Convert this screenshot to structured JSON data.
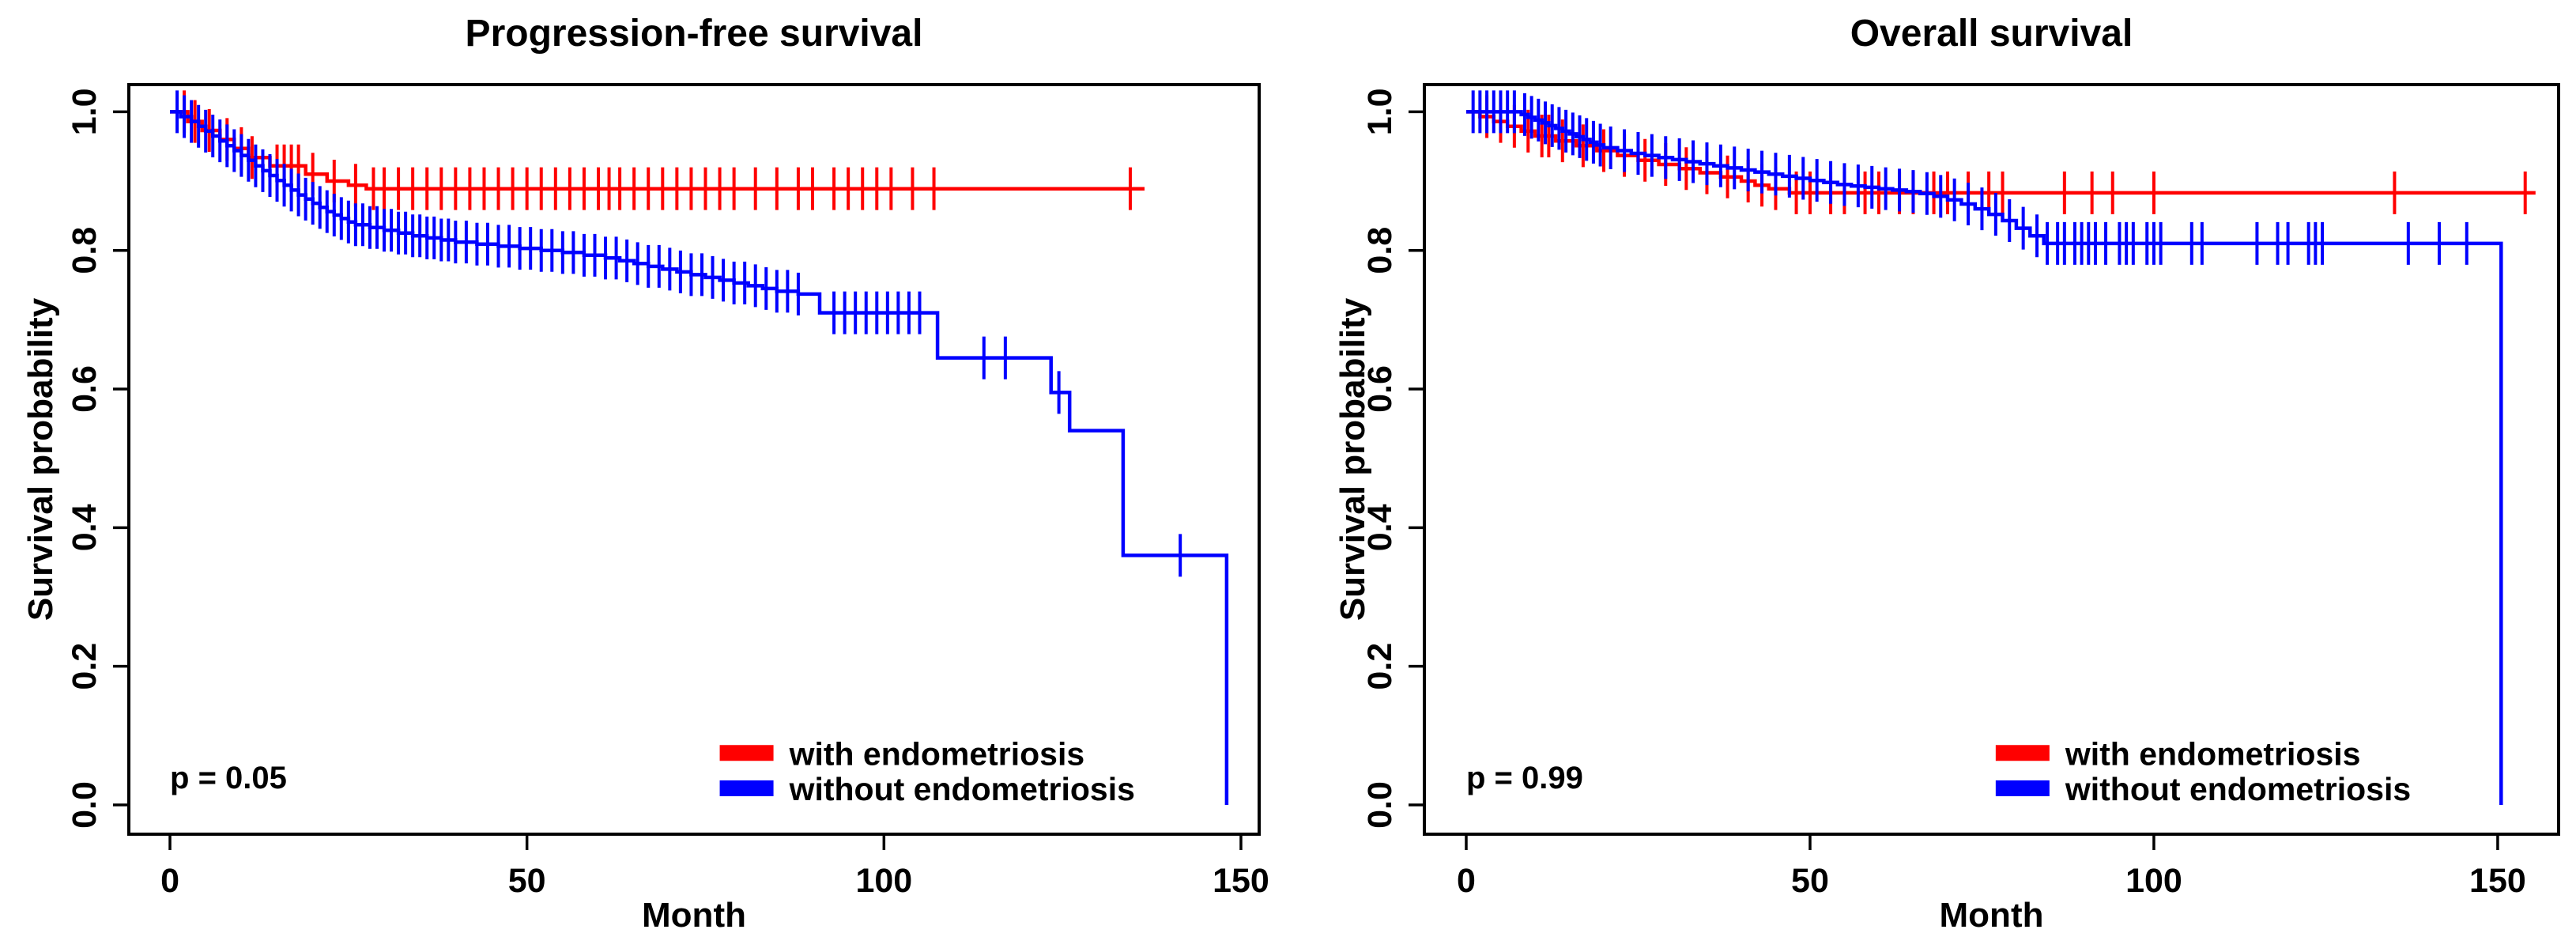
{
  "figure": {
    "background": "#ffffff",
    "curve_colors": {
      "with_endometriosis": "#FF0000",
      "without_endometriosis": "#0000FF"
    }
  },
  "chart_data": [
    {
      "type": "line",
      "subtype": "kaplan-meier-step",
      "title": "Progression-free survival",
      "xlabel": "Month",
      "ylabel": "Survival probability",
      "p_value_label": "p = 0.05",
      "x_ticks": [
        "0",
        "50",
        "100",
        "150"
      ],
      "x_tick_values": [
        0,
        50,
        100,
        150
      ],
      "y_ticks": [
        "1.0",
        "0.8",
        "0.6",
        "0.4",
        "0.2",
        "0.0"
      ],
      "y_tick_values": [
        1.0,
        0.8,
        0.6,
        0.4,
        0.2,
        0.0
      ],
      "xlim": [
        -5.76,
        152.55
      ],
      "ylim": [
        -0.0422,
        1.0392
      ],
      "grid": false,
      "legend": {
        "position": "bottom-right",
        "entries": [
          {
            "label": "with endometriosis",
            "color": "#FF0000"
          },
          {
            "label": "without endometriosis",
            "color": "#0000FF"
          }
        ]
      },
      "series": [
        {
          "name": "with endometriosis",
          "color": "#FF0000",
          "end": 136.5,
          "steps": [
            [
              0,
              1
            ],
            [
              2.5,
              0.986
            ],
            [
              4.5,
              0.973
            ],
            [
              7,
              0.96
            ],
            [
              9,
              0.947
            ],
            [
              11,
              0.934
            ],
            [
              14,
              0.922
            ],
            [
              19,
              0.91
            ],
            [
              22,
              0.9
            ],
            [
              25,
              0.894
            ],
            [
              27.5,
              0.889
            ]
          ],
          "censor_times": [
            2,
            3.5,
            5.5,
            8,
            10,
            11.5,
            15,
            16,
            17,
            18,
            20,
            23,
            26,
            28.5,
            30,
            32,
            34,
            36,
            38,
            40,
            42,
            44,
            46,
            48,
            50,
            52,
            54,
            56,
            58,
            60,
            61.5,
            63,
            65,
            67,
            69,
            71,
            73,
            75,
            77,
            79,
            82,
            85,
            88,
            90,
            93,
            95,
            97,
            99,
            101,
            104,
            107,
            134.5
          ]
        },
        {
          "name": "without endometriosis",
          "color": "#0000FF",
          "end": 148,
          "steps": [
            [
              0,
              1
            ],
            [
              1.5,
              0.993
            ],
            [
              3,
              0.986
            ],
            [
              4,
              0.979
            ],
            [
              5,
              0.972
            ],
            [
              6,
              0.965
            ],
            [
              7,
              0.958
            ],
            [
              8,
              0.951
            ],
            [
              9,
              0.944
            ],
            [
              10,
              0.937
            ],
            [
              11,
              0.93
            ],
            [
              12,
              0.922
            ],
            [
              13,
              0.915
            ],
            [
              14,
              0.908
            ],
            [
              15,
              0.901
            ],
            [
              16,
              0.894
            ],
            [
              17,
              0.887
            ],
            [
              18,
              0.88
            ],
            [
              19,
              0.874
            ],
            [
              20,
              0.868
            ],
            [
              21,
              0.862
            ],
            [
              22,
              0.856
            ],
            [
              23,
              0.851
            ],
            [
              24,
              0.846
            ],
            [
              25,
              0.841
            ],
            [
              26,
              0.837
            ],
            [
              28,
              0.833
            ],
            [
              30,
              0.829
            ],
            [
              32,
              0.825
            ],
            [
              34,
              0.821
            ],
            [
              36,
              0.818
            ],
            [
              38,
              0.815
            ],
            [
              40,
              0.812
            ],
            [
              43,
              0.809
            ],
            [
              46,
              0.806
            ],
            [
              49,
              0.803
            ],
            [
              52,
              0.8
            ],
            [
              55,
              0.797
            ],
            [
              58,
              0.793
            ],
            [
              61,
              0.789
            ],
            [
              63,
              0.785
            ],
            [
              65,
              0.781
            ],
            [
              67,
              0.777
            ],
            [
              69,
              0.773
            ],
            [
              71,
              0.769
            ],
            [
              73,
              0.765
            ],
            [
              75,
              0.761
            ],
            [
              77,
              0.757
            ],
            [
              79,
              0.753
            ],
            [
              81,
              0.749
            ],
            [
              83,
              0.745
            ],
            [
              85,
              0.741
            ],
            [
              88,
              0.737
            ],
            [
              91,
              0.71
            ],
            [
              107.5,
              0.645
            ],
            [
              123.4,
              0.595
            ],
            [
              126,
              0.54
            ],
            [
              133.5,
              0.36
            ],
            [
              148,
              0
            ]
          ],
          "censor_times": [
            1,
            2,
            3,
            4,
            5,
            6,
            7,
            8,
            9,
            10,
            11,
            12,
            13,
            14,
            15,
            16,
            17,
            18,
            19,
            20,
            21,
            22,
            23,
            24,
            25,
            26,
            27,
            28,
            29,
            30,
            31,
            32,
            33,
            34,
            35,
            36,
            37,
            38,
            39,
            40,
            41.5,
            43,
            44.5,
            46,
            47.5,
            49,
            50.5,
            52,
            53.5,
            55,
            56.5,
            58,
            59.5,
            61,
            62.5,
            64,
            65.5,
            67,
            68.5,
            70,
            71.5,
            73,
            74.5,
            76,
            77.5,
            79,
            80.5,
            82,
            83.5,
            85,
            86.5,
            88,
            93,
            94.5,
            96,
            97.5,
            99,
            100.5,
            102,
            103.5,
            105,
            114,
            117,
            124.5,
            141.5
          ]
        }
      ]
    },
    {
      "type": "line",
      "subtype": "kaplan-meier-step",
      "title": "Overall survival",
      "xlabel": "Month",
      "ylabel": "Survival probability",
      "p_value_label": "p = 0.99",
      "x_ticks": [
        "0",
        "50",
        "100",
        "150"
      ],
      "x_tick_values": [
        0,
        50,
        100,
        150
      ],
      "y_ticks": [
        "1.0",
        "0.8",
        "0.6",
        "0.4",
        "0.2",
        "0.0"
      ],
      "y_tick_values": [
        1.0,
        0.8,
        0.6,
        0.4,
        0.2,
        0.0
      ],
      "xlim": [
        -6.09,
        158.86
      ],
      "ylim": [
        -0.0422,
        1.0392
      ],
      "grid": false,
      "legend": {
        "position": "bottom-right",
        "entries": [
          {
            "label": "with endometriosis",
            "color": "#FF0000"
          },
          {
            "label": "without endometriosis",
            "color": "#0000FF"
          }
        ]
      },
      "series": [
        {
          "name": "with endometriosis",
          "color": "#FF0000",
          "end": 155.5,
          "steps": [
            [
              0,
              1
            ],
            [
              2,
              0.993
            ],
            [
              4,
              0.986
            ],
            [
              6,
              0.979
            ],
            [
              8,
              0.972
            ],
            [
              10,
              0.965
            ],
            [
              13,
              0.958
            ],
            [
              16,
              0.951
            ],
            [
              19,
              0.944
            ],
            [
              22,
              0.937
            ],
            [
              25,
              0.93
            ],
            [
              28,
              0.924
            ],
            [
              31,
              0.918
            ],
            [
              34,
              0.912
            ],
            [
              37,
              0.906
            ],
            [
              40,
              0.9
            ],
            [
              42,
              0.894
            ],
            [
              44,
              0.889
            ],
            [
              47,
              0.883
            ]
          ],
          "censor_times": [
            3,
            5,
            7,
            9,
            11,
            12,
            14,
            17,
            20,
            23,
            26,
            29,
            32,
            35,
            38,
            41,
            43,
            45,
            48,
            50,
            53,
            55,
            58,
            60,
            63,
            65,
            68,
            70,
            73,
            76,
            78,
            87,
            91,
            94,
            100,
            135,
            154
          ]
        },
        {
          "name": "without endometriosis",
          "color": "#0000FF",
          "end": 150.5,
          "steps": [
            [
              0,
              1
            ],
            [
              8,
              0.996
            ],
            [
              9,
              0.992
            ],
            [
              10,
              0.988
            ],
            [
              11,
              0.984
            ],
            [
              12,
              0.98
            ],
            [
              13,
              0.976
            ],
            [
              14,
              0.972
            ],
            [
              15,
              0.968
            ],
            [
              16,
              0.964
            ],
            [
              17,
              0.96
            ],
            [
              18,
              0.956
            ],
            [
              19,
              0.952
            ],
            [
              20,
              0.948
            ],
            [
              22,
              0.944
            ],
            [
              24,
              0.94
            ],
            [
              26,
              0.937
            ],
            [
              28,
              0.934
            ],
            [
              30,
              0.931
            ],
            [
              32,
              0.928
            ],
            [
              34,
              0.925
            ],
            [
              36,
              0.922
            ],
            [
              38,
              0.919
            ],
            [
              40,
              0.916
            ],
            [
              42,
              0.913
            ],
            [
              44,
              0.91
            ],
            [
              46,
              0.907
            ],
            [
              48,
              0.904
            ],
            [
              50,
              0.901
            ],
            [
              52,
              0.898
            ],
            [
              54,
              0.895
            ],
            [
              56,
              0.893
            ],
            [
              58,
              0.891
            ],
            [
              60,
              0.889
            ],
            [
              62,
              0.887
            ],
            [
              64,
              0.885
            ],
            [
              66,
              0.882
            ],
            [
              68,
              0.878
            ],
            [
              70,
              0.873
            ],
            [
              72,
              0.867
            ],
            [
              74,
              0.86
            ],
            [
              76,
              0.852
            ],
            [
              78,
              0.843
            ],
            [
              80,
              0.832
            ],
            [
              82,
              0.821
            ],
            [
              84,
              0.81
            ],
            [
              150.5,
              0
            ]
          ],
          "censor_times": [
            1,
            2,
            3,
            4,
            5,
            6,
            7,
            8.5,
            9.5,
            10.5,
            11.5,
            12.5,
            13.5,
            14.5,
            15.5,
            16.5,
            17.5,
            18.5,
            19.5,
            21,
            23,
            25,
            27,
            29,
            31,
            33,
            35,
            37,
            39,
            41,
            43,
            45,
            47,
            49,
            51,
            53,
            55,
            57,
            59,
            61,
            63,
            65,
            67,
            69,
            71,
            73,
            75,
            77,
            79,
            81,
            83,
            84.5,
            86,
            87,
            88.5,
            89.5,
            90.5,
            91.5,
            93,
            95,
            96,
            97,
            99,
            100,
            101,
            105.5,
            107,
            115,
            118,
            119.5,
            122.5,
            123.5,
            124.5,
            137,
            141.5,
            145.5
          ]
        }
      ]
    }
  ]
}
